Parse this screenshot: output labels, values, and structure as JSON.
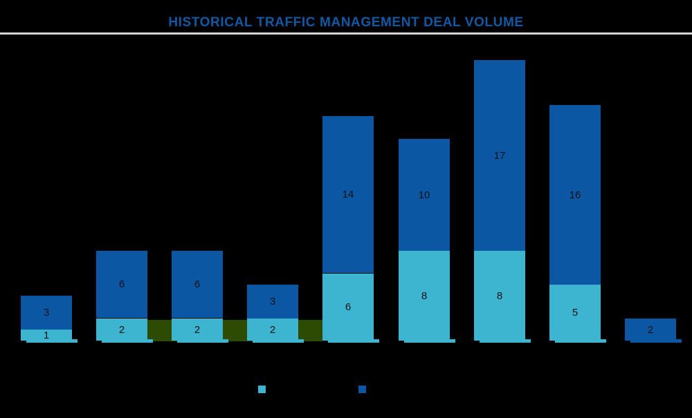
{
  "chart_data": {
    "type": "bar",
    "stacked": true,
    "title": "HISTORICAL TRAFFIC MANAGEMENT DEAL VOLUME",
    "series": [
      {
        "name": "segment-light-blue",
        "color": "#3DB5D1",
        "values": [
          1,
          2,
          2,
          2,
          6,
          8,
          8,
          5,
          0
        ]
      },
      {
        "name": "segment-dark-blue",
        "color": "#0B57A3",
        "values": [
          3,
          6,
          6,
          3,
          14,
          10,
          17,
          16,
          2
        ]
      }
    ],
    "data_labels": "centered-on-segments",
    "x_tick_labels_visible": false,
    "y_axis_visible": false,
    "grid": false,
    "legend_position": "bottom",
    "legend": [
      {
        "label": "",
        "color": "#3DB5D1"
      },
      {
        "label": "",
        "color": "#0B57A3"
      }
    ],
    "highlight_band": {
      "color": "#2E4B04",
      "from_bar_index": 1,
      "to_bar_index": 4,
      "value_height": 2
    }
  },
  "colors": {
    "background": "#000000",
    "title_text": "#1159A5",
    "divider": "#D6D6D6",
    "value_label": "#111111"
  }
}
